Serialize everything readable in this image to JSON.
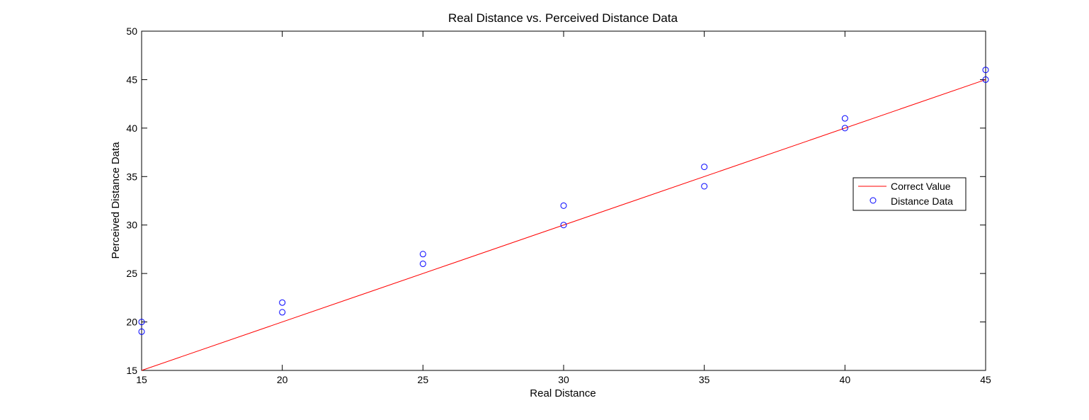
{
  "chart_data": {
    "type": "scatter",
    "title": "Real Distance vs. Perceived Distance Data",
    "xlabel": "Real Distance",
    "ylabel": "Perceived Distance Data",
    "xlim": [
      15,
      45
    ],
    "ylim": [
      15,
      50
    ],
    "xticks": [
      15,
      20,
      25,
      30,
      35,
      40,
      45
    ],
    "yticks": [
      15,
      20,
      25,
      30,
      35,
      40,
      45,
      50
    ],
    "grid": false,
    "legend_position": "right",
    "series": [
      {
        "name": "Correct Value",
        "kind": "line",
        "color": "#ff0000",
        "x": [
          15,
          45
        ],
        "y": [
          15,
          45
        ]
      },
      {
        "name": "Distance Data",
        "kind": "markers",
        "marker": "circle-open",
        "color": "#0000ff",
        "x": [
          15,
          15,
          20,
          20,
          25,
          25,
          30,
          30,
          35,
          35,
          40,
          40,
          45,
          45
        ],
        "y": [
          20,
          19,
          22,
          21,
          27,
          26,
          32,
          30,
          36,
          34,
          41,
          40,
          46,
          45
        ]
      }
    ]
  }
}
